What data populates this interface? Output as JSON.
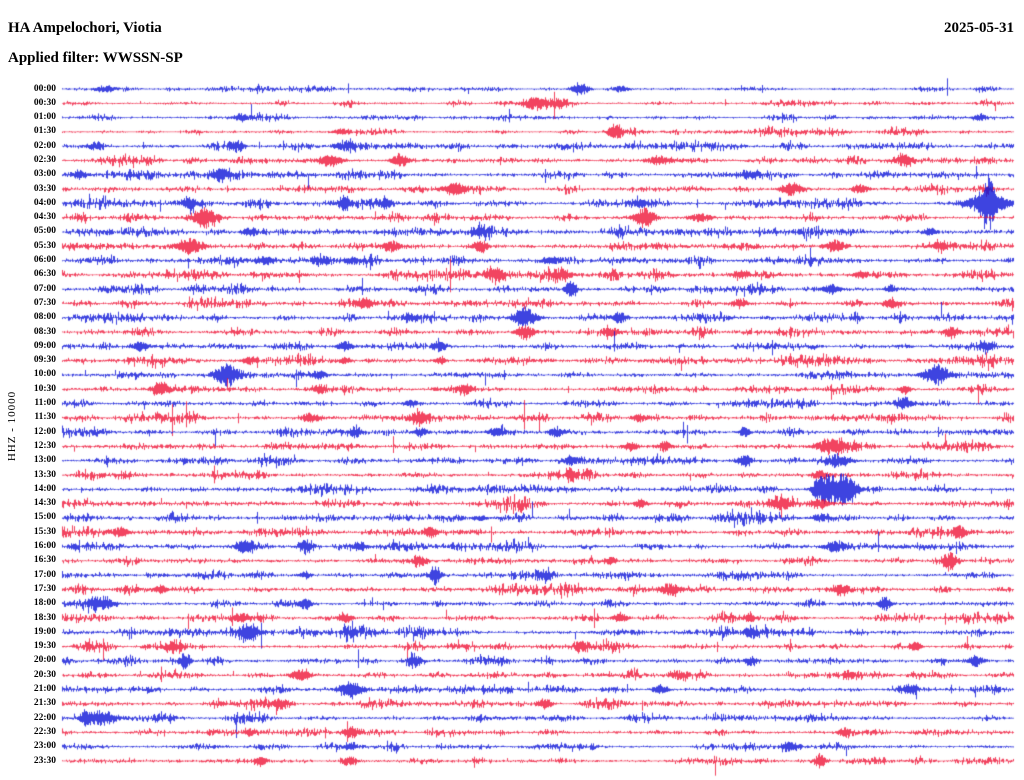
{
  "header": {
    "station": "HA Ampelochori, Viotia",
    "date": "2025-05-31",
    "filter_label": "Applied filter: WWSSN-SP"
  },
  "axis": {
    "ylabel": "HHZ - 10000"
  },
  "colors": {
    "blue": "#0c14d8",
    "red": "#ef1437",
    "text": "#000000",
    "background": "#ffffff"
  },
  "chart_data": {
    "type": "line",
    "subtype": "helicorder-seismogram",
    "station": "HA Ampelochori, Viotia",
    "date": "2025-05-31",
    "applied_filter": "WWSSN-SP",
    "channel_scale_label": "HHZ - 10000",
    "trace_interval_minutes": 30,
    "trace_color_cycle": [
      "blue",
      "red"
    ],
    "x_axis": "minutes 0-30 per line, no tick labels shown",
    "rows": [
      {
        "time": "00:00",
        "color": "blue",
        "noise": 1.1,
        "events": [
          [
            0.045,
            4,
            6
          ],
          [
            0.544,
            7,
            6
          ],
          [
            0.586,
            3,
            5
          ]
        ]
      },
      {
        "time": "00:30",
        "color": "red",
        "noise": 1.2,
        "events": [
          [
            0.497,
            6,
            9
          ],
          [
            0.523,
            4,
            6
          ]
        ]
      },
      {
        "time": "01:00",
        "color": "blue",
        "noise": 1.2,
        "events": [
          [
            0.187,
            4,
            5
          ],
          [
            0.964,
            3,
            4
          ]
        ]
      },
      {
        "time": "01:30",
        "color": "red",
        "noise": 1.3,
        "events": [
          [
            0.292,
            3,
            6
          ],
          [
            0.581,
            9,
            5
          ]
        ]
      },
      {
        "time": "02:00",
        "color": "blue",
        "noise": 1.6,
        "events": [
          [
            0.035,
            4,
            5
          ],
          [
            0.182,
            5,
            5
          ],
          [
            0.297,
            4,
            6
          ]
        ]
      },
      {
        "time": "02:30",
        "color": "red",
        "noise": 1.8,
        "events": [
          [
            0.282,
            6,
            8
          ],
          [
            0.355,
            7,
            6
          ],
          [
            0.628,
            4,
            9
          ],
          [
            0.885,
            6,
            5
          ]
        ]
      },
      {
        "time": "03:00",
        "color": "blue",
        "noise": 1.7,
        "events": [
          [
            0.019,
            4,
            6
          ],
          [
            0.166,
            5,
            5
          ],
          [
            0.723,
            3,
            8
          ]
        ]
      },
      {
        "time": "03:30",
        "color": "red",
        "noise": 1.8,
        "events": [
          [
            0.413,
            6,
            8
          ],
          [
            0.765,
            6,
            8
          ],
          [
            0.838,
            4,
            6
          ]
        ]
      },
      {
        "time": "04:00",
        "color": "blue",
        "noise": 1.9,
        "events": [
          [
            0.134,
            5,
            5
          ],
          [
            0.297,
            6,
            5
          ],
          [
            0.339,
            5,
            5
          ],
          [
            0.607,
            4,
            6
          ],
          [
            0.973,
            22,
            4
          ],
          [
            0.973,
            8,
            16
          ]
        ]
      },
      {
        "time": "04:30",
        "color": "red",
        "noise": 2.0,
        "events": [
          [
            0.15,
            9,
            8
          ],
          [
            0.612,
            10,
            7
          ],
          [
            0.67,
            4,
            8
          ]
        ]
      },
      {
        "time": "05:00",
        "color": "blue",
        "noise": 2.2,
        "events": [
          [
            0.197,
            4,
            6
          ],
          [
            0.439,
            4,
            6
          ],
          [
            0.912,
            4,
            5
          ]
        ]
      },
      {
        "time": "05:30",
        "color": "red",
        "noise": 2.3,
        "events": [
          [
            0.134,
            8,
            9
          ],
          [
            0.345,
            6,
            6
          ],
          [
            0.439,
            6,
            5
          ],
          [
            0.812,
            6,
            7
          ],
          [
            0.922,
            4,
            5
          ]
        ]
      },
      {
        "time": "06:00",
        "color": "blue",
        "noise": 2.1,
        "events": [
          [
            0.213,
            5,
            6
          ],
          [
            0.271,
            5,
            5
          ],
          [
            0.303,
            4,
            5
          ],
          [
            0.513,
            3,
            6
          ]
        ]
      },
      {
        "time": "06:30",
        "color": "red",
        "noise": 2.0,
        "events": [
          [
            0.455,
            6,
            7
          ],
          [
            0.523,
            5,
            6
          ],
          [
            0.712,
            4,
            6
          ],
          [
            0.838,
            4,
            5
          ]
        ]
      },
      {
        "time": "07:00",
        "color": "blue",
        "noise": 1.8,
        "events": [
          [
            0.534,
            9,
            4
          ],
          [
            0.807,
            5,
            6
          ],
          [
            0.87,
            4,
            4
          ]
        ]
      },
      {
        "time": "07:30",
        "color": "red",
        "noise": 1.9,
        "events": [
          [
            0.318,
            6,
            6
          ],
          [
            0.712,
            4,
            5
          ],
          [
            0.87,
            5,
            5
          ]
        ]
      },
      {
        "time": "08:00",
        "color": "blue",
        "noise": 1.9,
        "events": [
          [
            0.366,
            4,
            5
          ],
          [
            0.486,
            10,
            8
          ],
          [
            0.586,
            6,
            5
          ]
        ]
      },
      {
        "time": "08:30",
        "color": "red",
        "noise": 1.9,
        "events": [
          [
            0.486,
            8,
            6
          ],
          [
            0.576,
            5,
            5
          ],
          [
            0.933,
            6,
            5
          ]
        ]
      },
      {
        "time": "09:00",
        "color": "blue",
        "noise": 1.8,
        "events": [
          [
            0.082,
            5,
            5
          ],
          [
            0.297,
            5,
            5
          ],
          [
            0.397,
            5,
            4
          ],
          [
            0.97,
            5,
            5
          ]
        ]
      },
      {
        "time": "09:30",
        "color": "red",
        "noise": 1.8,
        "events": [
          [
            0.197,
            4,
            5
          ],
          [
            0.297,
            4,
            4
          ],
          [
            0.397,
            4,
            4
          ]
        ]
      },
      {
        "time": "10:00",
        "color": "blue",
        "noise": 1.9,
        "events": [
          [
            0.174,
            11,
            8
          ],
          [
            0.271,
            4,
            5
          ],
          [
            0.917,
            10,
            9
          ]
        ]
      },
      {
        "time": "10:30",
        "color": "red",
        "noise": 1.9,
        "events": [
          [
            0.103,
            6,
            6
          ],
          [
            0.271,
            5,
            5
          ],
          [
            0.423,
            5,
            5
          ],
          [
            0.885,
            5,
            4
          ]
        ]
      },
      {
        "time": "11:00",
        "color": "blue",
        "noise": 1.7,
        "events": [
          [
            0.366,
            4,
            5
          ],
          [
            0.885,
            5,
            6
          ]
        ]
      },
      {
        "time": "11:30",
        "color": "red",
        "noise": 1.8,
        "events": [
          [
            0.26,
            5,
            6
          ],
          [
            0.376,
            6,
            6
          ],
          [
            0.607,
            4,
            5
          ]
        ]
      },
      {
        "time": "12:00",
        "color": "blue",
        "noise": 1.9,
        "events": [
          [
            0.308,
            5,
            5
          ],
          [
            0.376,
            4,
            5
          ],
          [
            0.455,
            4,
            5
          ],
          [
            0.518,
            5,
            5
          ],
          [
            0.717,
            5,
            4
          ]
        ]
      },
      {
        "time": "12:30",
        "color": "red",
        "noise": 1.9,
        "events": [
          [
            0.597,
            5,
            5
          ],
          [
            0.633,
            5,
            5
          ],
          [
            0.807,
            7,
            11
          ]
        ]
      },
      {
        "time": "13:00",
        "color": "blue",
        "noise": 1.8,
        "events": [
          [
            0.534,
            4,
            4
          ],
          [
            0.717,
            6,
            5
          ],
          [
            0.817,
            5,
            8
          ]
        ]
      },
      {
        "time": "13:30",
        "color": "red",
        "noise": 1.8,
        "events": [
          [
            0.534,
            6,
            4
          ],
          [
            0.796,
            4,
            6
          ]
        ]
      },
      {
        "time": "14:00",
        "color": "blue",
        "noise": 1.9,
        "events": [
          [
            0.812,
            15,
            20,
            6
          ]
        ]
      },
      {
        "time": "14:30",
        "color": "red",
        "noise": 1.9,
        "events": [
          [
            0.607,
            4,
            5
          ],
          [
            0.754,
            6,
            8
          ],
          [
            0.796,
            5,
            6
          ]
        ]
      },
      {
        "time": "15:00",
        "color": "blue",
        "noise": 1.8,
        "events": [
          [
            0.439,
            3,
            5
          ],
          [
            0.796,
            4,
            6
          ]
        ]
      },
      {
        "time": "15:30",
        "color": "red",
        "noise": 1.9,
        "events": [
          [
            0.061,
            5,
            6
          ],
          [
            0.387,
            5,
            5
          ],
          [
            0.943,
            6,
            5
          ]
        ]
      },
      {
        "time": "16:00",
        "color": "blue",
        "noise": 1.9,
        "events": [
          [
            0.192,
            6,
            6
          ],
          [
            0.255,
            5,
            5
          ],
          [
            0.313,
            5,
            5
          ],
          [
            0.812,
            6,
            7
          ]
        ]
      },
      {
        "time": "16:30",
        "color": "red",
        "noise": 1.8,
        "events": [
          [
            0.376,
            4,
            5
          ],
          [
            0.576,
            4,
            4
          ],
          [
            0.933,
            8,
            5
          ]
        ]
      },
      {
        "time": "17:00",
        "color": "blue",
        "noise": 1.8,
        "events": [
          [
            0.255,
            4,
            4
          ],
          [
            0.392,
            9,
            4
          ],
          [
            0.507,
            5,
            5
          ]
        ]
      },
      {
        "time": "17:30",
        "color": "red",
        "noise": 1.9,
        "events": [
          [
            0.103,
            4,
            5
          ],
          [
            0.639,
            6,
            8
          ],
          [
            0.817,
            6,
            6
          ]
        ]
      },
      {
        "time": "18:00",
        "color": "blue",
        "noise": 1.8,
        "events": [
          [
            0.04,
            6,
            8
          ],
          [
            0.255,
            5,
            5
          ],
          [
            0.864,
            7,
            4
          ]
        ]
      },
      {
        "time": "18:30",
        "color": "red",
        "noise": 1.8,
        "events": [
          [
            0.187,
            5,
            6
          ],
          [
            0.297,
            5,
            5
          ],
          [
            0.586,
            5,
            5
          ],
          [
            0.723,
            4,
            4
          ]
        ]
      },
      {
        "time": "19:00",
        "color": "blue",
        "noise": 1.8,
        "events": [
          [
            0.197,
            9,
            7
          ],
          [
            0.303,
            4,
            4
          ],
          [
            0.723,
            5,
            5
          ]
        ]
      },
      {
        "time": "19:30",
        "color": "red",
        "noise": 1.7,
        "events": [
          [
            0.119,
            5,
            5
          ],
          [
            0.544,
            5,
            5
          ],
          [
            0.896,
            5,
            4
          ]
        ]
      },
      {
        "time": "20:00",
        "color": "blue",
        "noise": 1.8,
        "events": [
          [
            0.129,
            9,
            4
          ],
          [
            0.371,
            5,
            5
          ],
          [
            0.723,
            5,
            5
          ],
          [
            0.959,
            6,
            6
          ]
        ]
      },
      {
        "time": "20:30",
        "color": "red",
        "noise": 1.7,
        "events": [
          [
            0.25,
            6,
            7
          ],
          [
            0.649,
            4,
            5
          ],
          [
            0.828,
            3,
            5
          ]
        ]
      },
      {
        "time": "21:00",
        "color": "blue",
        "noise": 1.7,
        "events": [
          [
            0.303,
            7,
            8
          ],
          [
            0.628,
            5,
            5
          ],
          [
            0.891,
            5,
            5
          ]
        ]
      },
      {
        "time": "21:30",
        "color": "red",
        "noise": 1.6,
        "events": [
          [
            0.229,
            5,
            5
          ],
          [
            0.507,
            5,
            5
          ]
        ]
      },
      {
        "time": "22:00",
        "color": "blue",
        "noise": 1.6,
        "events": [
          [
            0.024,
            6,
            4
          ],
          [
            0.04,
            8,
            10
          ]
        ]
      },
      {
        "time": "22:30",
        "color": "red",
        "noise": 1.6,
        "events": [
          [
            0.197,
            4,
            4
          ],
          [
            0.303,
            6,
            6
          ],
          [
            0.822,
            4,
            5
          ]
        ]
      },
      {
        "time": "23:00",
        "color": "blue",
        "noise": 1.4,
        "events": [
          [
            0.303,
            3,
            4
          ],
          [
            0.765,
            4,
            6
          ]
        ]
      },
      {
        "time": "23:30",
        "color": "red",
        "noise": 1.5,
        "events": [
          [
            0.208,
            6,
            4
          ],
          [
            0.303,
            4,
            4
          ],
          [
            0.796,
            8,
            4
          ]
        ]
      }
    ],
    "events_note": "events are [x_fraction_of_line, amplitude_px, width_px, optional_envelope_power]; prominent bursts: 04:00 end-of-line large blue spike, 10:00 two dense blue bursts, 14:00 large saturated blue block near x=0.81, 23:30 red spike near x=0.80"
  }
}
